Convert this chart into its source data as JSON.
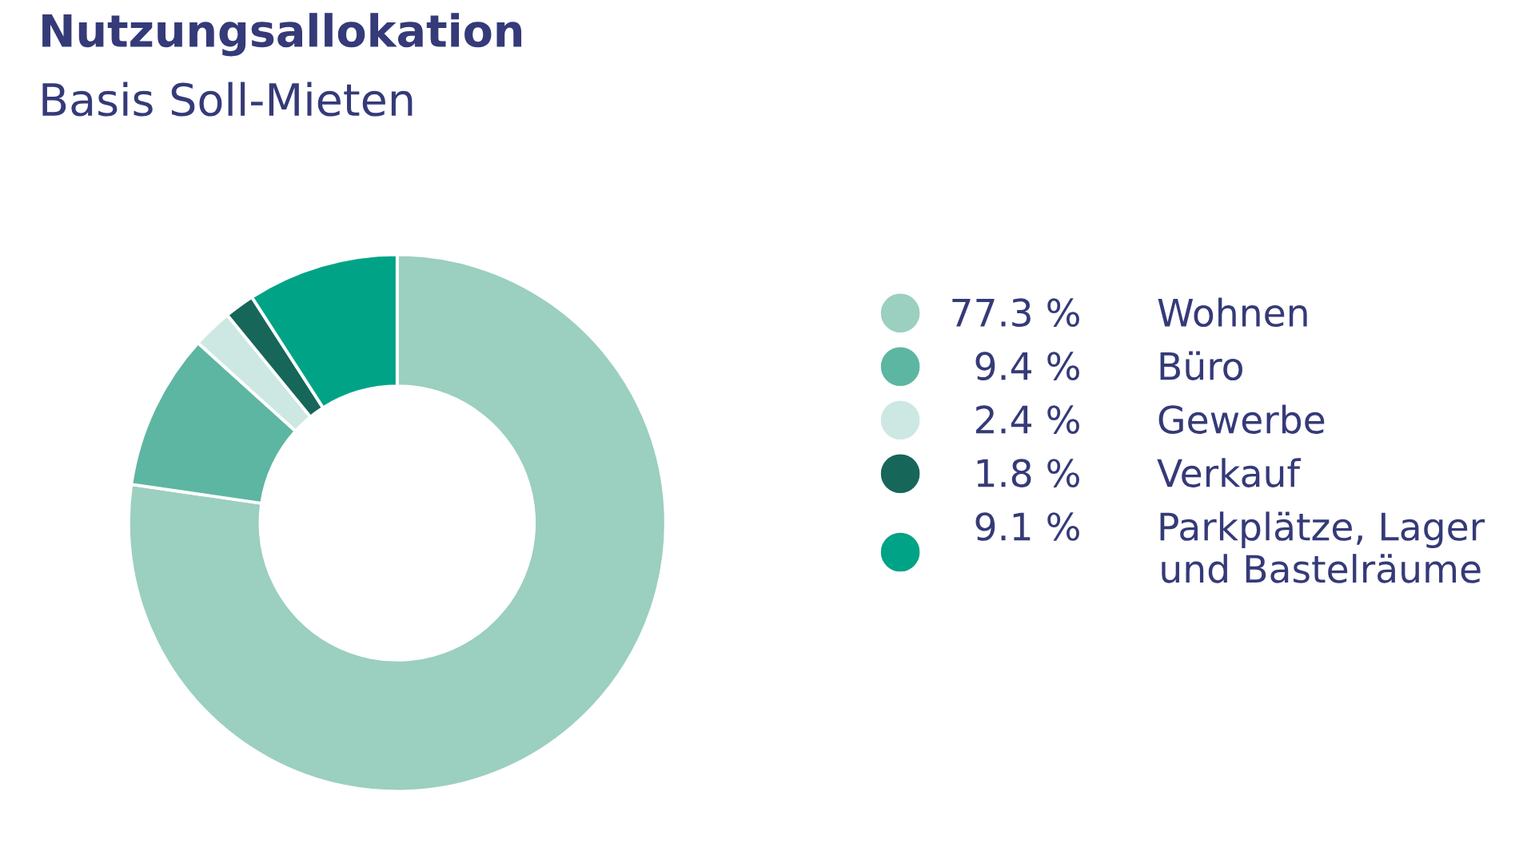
{
  "chart_data": {
    "type": "donut",
    "title": "Nutzungsallokation",
    "subtitle": "Basis Soll-Mieten",
    "categories": [
      "Wohnen",
      "Büro",
      "Gewerbe",
      "Verkauf",
      "Parkplätze, Lager\nund Bastelräume"
    ],
    "values": [
      77.3,
      9.4,
      2.4,
      1.8,
      9.1
    ],
    "colors": [
      "#9bcfc0",
      "#5db6a2",
      "#cde8e2",
      "#17665a",
      "#00a386"
    ],
    "value_labels": [
      "77.3 %",
      "9.4 %",
      "2.4 %",
      "1.8 %",
      "9.1 %"
    ],
    "legend": "right"
  }
}
